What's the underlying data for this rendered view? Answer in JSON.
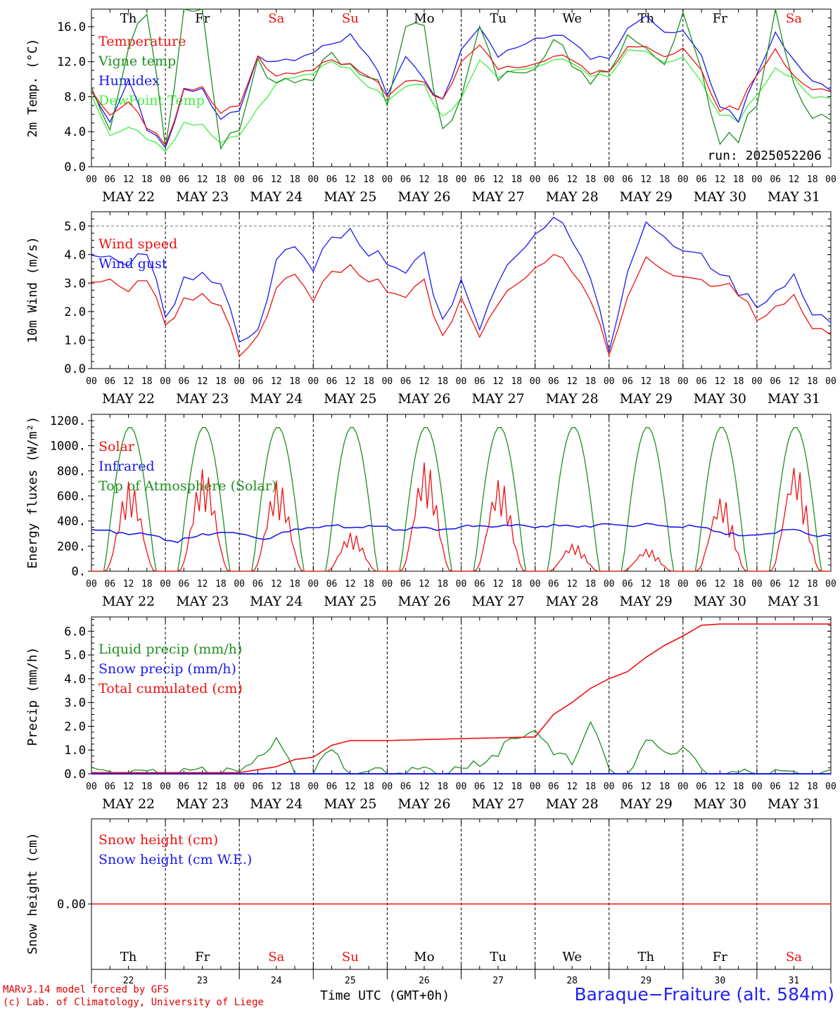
{
  "colors": {
    "red": "#ee1111",
    "green": "#1f8f1f",
    "blue": "#1a1aee",
    "lime": "#3ef03e",
    "black": "#000000"
  },
  "days": {
    "weekdays": [
      "Th",
      "Fr",
      "Sa",
      "Su",
      "Mo",
      "Tu",
      "We",
      "Th",
      "Fr",
      "Sa"
    ],
    "weekday_colors": [
      "black",
      "black",
      "red",
      "red",
      "black",
      "black",
      "black",
      "black",
      "black",
      "red"
    ],
    "dates": [
      "MAY 22",
      "MAY 23",
      "MAY 24",
      "MAY 25",
      "MAY 26",
      "MAY 27",
      "MAY 28",
      "MAY 29",
      "MAY 30",
      "MAY 31"
    ],
    "day_numbers": [
      "22",
      "23",
      "24",
      "25",
      "26",
      "27",
      "28",
      "29",
      "30",
      "31"
    ],
    "hour_ticks": [
      "00",
      "06",
      "12",
      "18"
    ]
  },
  "footer": {
    "line1": "MARv3.14 model forced by GFS",
    "line2": "(c) Lab. of Climatology, University of Liege",
    "xlabel": "Time UTC (GMT+0h)",
    "location": "Baraque−Fraiture (alt. 584m)"
  },
  "chart_data": [
    {
      "type": "line",
      "ylabel": "2m Temp. (°C)",
      "ylim": [
        0,
        18
      ],
      "yticks": [
        "0.0",
        "4.0",
        "8.0",
        "12.0",
        "16.0"
      ],
      "run_label": "run: 2025052206",
      "x_hours": [
        0,
        6,
        12,
        18,
        24,
        30,
        36,
        42,
        48,
        54,
        60,
        66,
        72,
        78,
        84,
        90,
        96,
        102,
        108,
        114,
        120,
        126,
        132,
        138,
        144,
        150,
        156,
        162,
        168,
        174,
        180,
        186,
        192,
        198,
        204,
        210,
        216,
        222,
        228,
        234,
        240
      ],
      "series": [
        {
          "name": "Temperature",
          "color": "red",
          "values": [
            8.2,
            5.8,
            7.4,
            4.2,
            2.8,
            8.6,
            8.7,
            6.5,
            6.9,
            12.7,
            10.3,
            11.0,
            11.5,
            12.2,
            12.1,
            10.2,
            8.4,
            10.2,
            9.2,
            8.0,
            11.6,
            14.3,
            11.6,
            11.2,
            11.9,
            12.6,
            12.4,
            10.8,
            10.5,
            13.9,
            13.5,
            12.7,
            13.5,
            10.8,
            6.5,
            6.4,
            10.9,
            13.1,
            10.2,
            9.0,
            8.2
          ]
        },
        {
          "name": "Vigne temp",
          "color": "green",
          "values": [
            8.0,
            4.0,
            13.5,
            17.0,
            3.0,
            17.5,
            17.5,
            3.0,
            4.0,
            12.5,
            9.5,
            10.5,
            11.0,
            13.0,
            12.5,
            10.0,
            8.0,
            17.0,
            15.0,
            5.0,
            7.0,
            17.0,
            11.0,
            10.5,
            11.5,
            14.5,
            12.0,
            10.0,
            10.0,
            15.5,
            13.0,
            12.0,
            17.5,
            10.5,
            3.0,
            2.5,
            8.0,
            17.5,
            9.0,
            6.0,
            4.5
          ]
        },
        {
          "name": "Humidex",
          "color": "blue",
          "values": [
            8.2,
            5.0,
            9.9,
            4.0,
            2.5,
            8.5,
            8.5,
            5.8,
            6.3,
            12.7,
            12.0,
            12.5,
            13.5,
            14.0,
            15.5,
            12.5,
            8.6,
            13.0,
            9.5,
            8.0,
            13.0,
            16.3,
            13.0,
            13.5,
            14.8,
            15.0,
            14.5,
            12.5,
            12.0,
            16.0,
            17.0,
            15.5,
            15.5,
            12.5,
            7.0,
            5.0,
            11.0,
            15.0,
            12.0,
            10.0,
            8.3
          ]
        },
        {
          "name": "DewPoint Temp",
          "color": "lime",
          "values": [
            7.8,
            3.5,
            4.5,
            3.0,
            2.0,
            4.8,
            4.5,
            3.0,
            3.5,
            6.8,
            9.5,
            10.5,
            11.0,
            12.0,
            11.5,
            9.0,
            7.8,
            9.5,
            9.0,
            6.0,
            7.5,
            12.5,
            10.5,
            11.0,
            11.5,
            12.2,
            12.0,
            10.5,
            10.0,
            13.5,
            13.0,
            12.0,
            12.5,
            9.5,
            6.0,
            5.0,
            8.5,
            11.0,
            10.0,
            8.0,
            7.5
          ]
        }
      ]
    },
    {
      "type": "line",
      "ylabel": "10m Wind (m/s)",
      "ylim": [
        0,
        5.5
      ],
      "yticks": [
        "0.0",
        "1.0",
        "2.0",
        "3.0",
        "4.0",
        "5.0"
      ],
      "ref_line": 5.0,
      "x_hours": [
        0,
        6,
        12,
        18,
        24,
        30,
        36,
        42,
        48,
        54,
        60,
        66,
        72,
        78,
        84,
        90,
        96,
        102,
        108,
        114,
        120,
        126,
        132,
        138,
        144,
        150,
        156,
        162,
        168,
        174,
        180,
        186,
        192,
        198,
        204,
        210,
        216,
        222,
        228,
        234,
        240
      ],
      "series": [
        {
          "name": "Wind speed",
          "color": "red",
          "values": [
            2.8,
            3.1,
            2.7,
            3.0,
            1.7,
            2.3,
            2.4,
            2.4,
            0.4,
            1.2,
            2.8,
            3.5,
            2.6,
            3.4,
            3.8,
            3.0,
            2.9,
            2.7,
            2.9,
            1.3,
            2.3,
            1.3,
            2.5,
            2.9,
            3.6,
            4.0,
            3.5,
            2.5,
            0.3,
            2.6,
            3.8,
            3.5,
            3.2,
            3.0,
            3.0,
            2.5,
            1.9,
            2.0,
            2.5,
            1.5,
            1.0
          ]
        },
        {
          "name": "Wind gust",
          "color": "blue",
          "values": [
            3.7,
            3.9,
            3.6,
            3.9,
            2.0,
            3.0,
            3.1,
            3.2,
            0.9,
            1.4,
            3.8,
            4.5,
            3.7,
            4.6,
            5.1,
            3.9,
            3.9,
            3.6,
            3.8,
            1.9,
            2.9,
            1.6,
            3.3,
            3.9,
            4.8,
            5.3,
            4.6,
            3.3,
            0.4,
            3.5,
            5.0,
            4.7,
            4.1,
            3.9,
            3.4,
            2.5,
            2.4,
            2.5,
            3.2,
            2.0,
            1.4
          ]
        }
      ]
    },
    {
      "type": "line",
      "ylabel": "Energy fluxes (W/m²)",
      "ylim": [
        0,
        1250
      ],
      "yticks": [
        "0.",
        "200.",
        "400.",
        "600.",
        "800.",
        "1000.",
        "1200."
      ],
      "series": [
        {
          "name": "Solar",
          "color": "red",
          "peaks": [
            720,
            820,
            730,
            310,
            880,
            740,
            220,
            180,
            600,
            860
          ]
        },
        {
          "name": "Infrared",
          "color": "blue",
          "values": [
            330,
            300,
            240,
            320,
            260,
            360,
            360,
            340,
            340,
            360,
            360,
            360,
            370,
            365,
            350,
            270,
            330,
            270
          ]
        },
        {
          "name": "Top of Atmosphere (Solar)",
          "color": "green",
          "peak": 1150
        }
      ]
    },
    {
      "type": "line",
      "ylabel": "Precip (mm/h)",
      "ylim": [
        0,
        6.6
      ],
      "yticks": [
        "0.0",
        "1.0",
        "2.0",
        "3.0",
        "4.0",
        "5.0",
        "6.0"
      ],
      "x_hours": [
        0,
        24,
        48,
        60,
        66,
        72,
        78,
        84,
        96,
        120,
        144,
        150,
        156,
        162,
        168,
        174,
        180,
        186,
        192,
        198,
        204,
        216,
        240
      ],
      "series": [
        {
          "name": "Liquid precip (mm/h)",
          "color": "green",
          "values": [
            0.05,
            0.05,
            0.05,
            1.5,
            0.2,
            0.1,
            1.0,
            0.1,
            0.05,
            0.05,
            1.9,
            0.8,
            0.5,
            2.3,
            0.05,
            0.05,
            1.3,
            1.0,
            1.1,
            0.1,
            0.0,
            0.0,
            0.0
          ]
        },
        {
          "name": "Snow precip (mm/h)",
          "color": "blue",
          "values": [
            0,
            0,
            0,
            0,
            0,
            0,
            0,
            0,
            0,
            0,
            0,
            0,
            0,
            0,
            0,
            0,
            0,
            0,
            0,
            0,
            0,
            0,
            0
          ]
        },
        {
          "name": "Total cumulated (cm)",
          "color": "red",
          "values": [
            0.05,
            0.05,
            0.05,
            0.3,
            0.6,
            0.7,
            1.2,
            1.4,
            1.4,
            1.48,
            1.55,
            2.5,
            3.0,
            3.6,
            4.0,
            4.3,
            4.9,
            5.4,
            5.8,
            6.25,
            6.3,
            6.3,
            6.3
          ]
        }
      ]
    },
    {
      "type": "line",
      "ylabel": "Snow height (cm)",
      "yticks": [
        "0.00"
      ],
      "series": [
        {
          "name": "Snow height (cm)",
          "color": "red",
          "values": [
            0,
            0
          ]
        },
        {
          "name": "Snow height (cm W.E.)",
          "color": "blue",
          "values": [
            0,
            0
          ]
        }
      ]
    }
  ]
}
